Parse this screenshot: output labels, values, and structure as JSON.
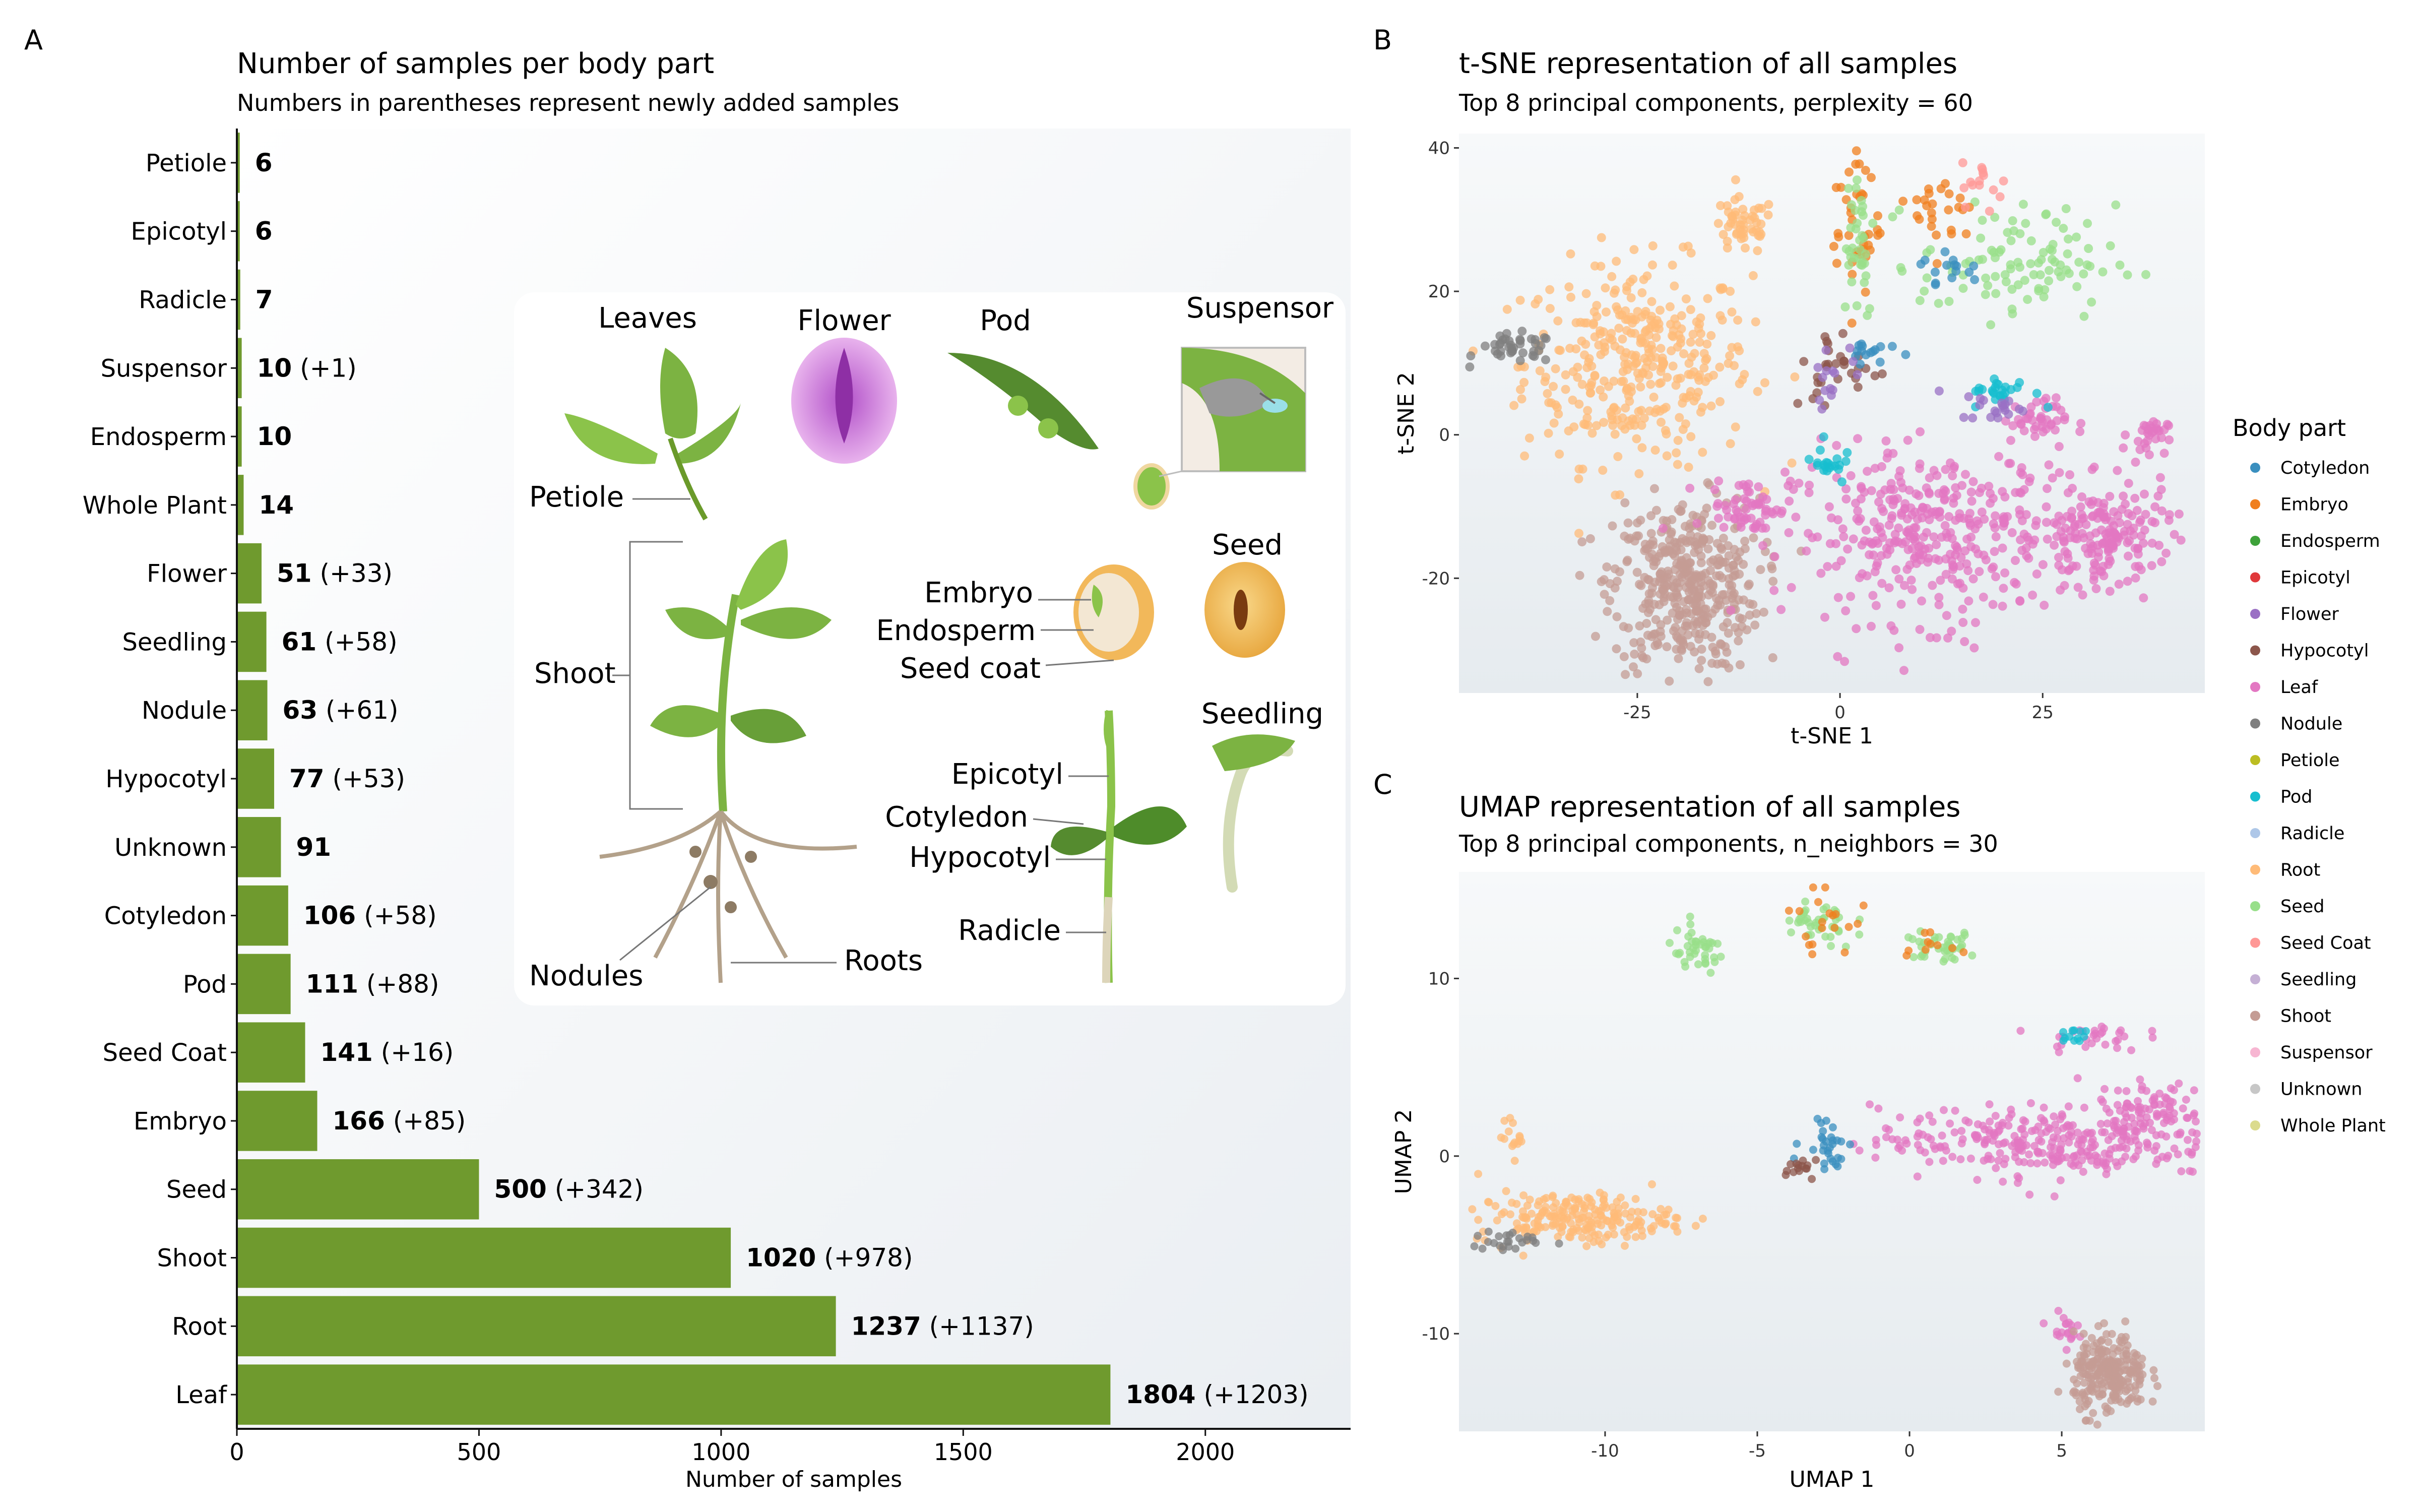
{
  "panels": {
    "a": "A",
    "b": "B",
    "c": "C"
  },
  "bar_panel": {
    "title": "Number of samples per body part",
    "subtitle": "Numbers in parentheses represent newly added samples",
    "xlabel": "Number of samples"
  },
  "illustration": {
    "labels": {
      "leaves": "Leaves",
      "flower": "Flower",
      "pod": "Pod",
      "suspensor": "Suspensor",
      "petiole": "Petiole",
      "shoot": "Shoot",
      "embryo": "Embryo",
      "endosperm": "Endosperm",
      "seed_coat": "Seed coat",
      "seed": "Seed",
      "seedling": "Seedling",
      "epicotyl": "Epicotyl",
      "cotyledon": "Cotyledon",
      "hypocotyl": "Hypocotyl",
      "radicle": "Radicle",
      "nodules": "Nodules",
      "roots": "Roots"
    }
  },
  "tsne_panel": {
    "title": "t-SNE representation of all samples",
    "subtitle": "Top 8 principal components, perplexity = 60",
    "xlabel": "t-SNE 1",
    "ylabel": "t-SNE 2"
  },
  "umap_panel": {
    "title": "UMAP representation of all samples",
    "subtitle": "Top 8 principal components, n_neighbors = 30",
    "xlabel": "UMAP 1",
    "ylabel": "UMAP 2"
  },
  "legend": {
    "title": "Body part",
    "items": [
      {
        "name": "Cotyledon",
        "color": "#3a8fbf"
      },
      {
        "name": "Embryo",
        "color": "#f07f1e"
      },
      {
        "name": "Endosperm",
        "color": "#3ea23a"
      },
      {
        "name": "Epicotyl",
        "color": "#e0393b"
      },
      {
        "name": "Flower",
        "color": "#9a70c4"
      },
      {
        "name": "Hypocotyl",
        "color": "#8c564b"
      },
      {
        "name": "Leaf",
        "color": "#e377c2"
      },
      {
        "name": "Nodule",
        "color": "#7f7f7f"
      },
      {
        "name": "Petiole",
        "color": "#bcbd22"
      },
      {
        "name": "Pod",
        "color": "#17becf"
      },
      {
        "name": "Radicle",
        "color": "#aec7e8"
      },
      {
        "name": "Root",
        "color": "#ffbb78"
      },
      {
        "name": "Seed",
        "color": "#98df8a"
      },
      {
        "name": "Seed Coat",
        "color": "#ff9896"
      },
      {
        "name": "Seedling",
        "color": "#c5b0d5"
      },
      {
        "name": "Shoot",
        "color": "#c49c94"
      },
      {
        "name": "Suspensor",
        "color": "#f7b6d2"
      },
      {
        "name": "Unknown",
        "color": "#c7c7c7"
      },
      {
        "name": "Whole Plant",
        "color": "#dbdb8d"
      }
    ]
  },
  "chart_data": [
    {
      "type": "bar",
      "orientation": "horizontal",
      "title": "Number of samples per body part",
      "subtitle": "Numbers in parentheses represent newly added samples",
      "xlabel": "Number of samples",
      "ylabel": "",
      "xlim": [
        0,
        2300
      ],
      "xticks": [
        0,
        500,
        1000,
        1500,
        2000
      ],
      "bar_color": "#6f9a2e",
      "categories": [
        "Petiole",
        "Epicotyl",
        "Radicle",
        "Suspensor",
        "Endosperm",
        "Whole Plant",
        "Flower",
        "Seedling",
        "Nodule",
        "Hypocotyl",
        "Unknown",
        "Cotyledon",
        "Pod",
        "Seed Coat",
        "Embryo",
        "Seed",
        "Shoot",
        "Root",
        "Leaf"
      ],
      "values": [
        6,
        6,
        7,
        10,
        10,
        14,
        51,
        61,
        63,
        77,
        91,
        106,
        111,
        141,
        166,
        500,
        1020,
        1237,
        1804
      ],
      "new_samples": [
        "",
        "",
        "",
        "(+1)",
        "",
        "",
        "(+33)",
        "(+58)",
        "(+61)",
        "(+53)",
        "",
        "(+58)",
        "(+88)",
        "(+16)",
        "(+85)",
        "(+342)",
        "(+978)",
        "(+1137)",
        "(+1203)"
      ]
    },
    {
      "type": "scatter",
      "title": "t-SNE representation of all samples",
      "subtitle": "Top 8 principal components, perplexity = 60",
      "xlabel": "t-SNE 1",
      "ylabel": "t-SNE 2",
      "xlim": [
        -47,
        45
      ],
      "ylim": [
        -36,
        42
      ],
      "xticks": [
        -25,
        0,
        25
      ],
      "yticks": [
        -20,
        0,
        20,
        40
      ],
      "clusters": [
        {
          "series": "Root",
          "x": -25,
          "y": 10,
          "sx": 7,
          "sy": 7,
          "n": 360
        },
        {
          "series": "Root",
          "x": -12,
          "y": 29,
          "sx": 2,
          "sy": 2,
          "n": 50
        },
        {
          "series": "Nodule",
          "x": -40,
          "y": 12,
          "sx": 2.5,
          "sy": 1,
          "n": 40
        },
        {
          "series": "Shoot",
          "x": -19,
          "y": -21,
          "sx": 4.5,
          "sy": 6,
          "n": 420
        },
        {
          "series": "Leaf",
          "x": 12,
          "y": -14,
          "sx": 9,
          "sy": 6,
          "n": 380
        },
        {
          "series": "Leaf",
          "x": 33,
          "y": -14,
          "sx": 4,
          "sy": 3.5,
          "n": 160
        },
        {
          "series": "Leaf",
          "x": -11,
          "y": -10,
          "sx": 2.5,
          "sy": 2,
          "n": 60
        },
        {
          "series": "Leaf",
          "x": 38,
          "y": 0,
          "sx": 1.2,
          "sy": 1.2,
          "n": 30
        },
        {
          "series": "Leaf",
          "x": 24,
          "y": 2,
          "sx": 2,
          "sy": 1.5,
          "n": 40
        },
        {
          "series": "Seed",
          "x": 22,
          "y": 24,
          "sx": 6,
          "sy": 4,
          "n": 100
        },
        {
          "series": "Embryo",
          "x": 2,
          "y": 30,
          "sx": 1.5,
          "sy": 6,
          "n": 40
        },
        {
          "series": "Embryo",
          "x": 13,
          "y": 31,
          "sx": 2,
          "sy": 3,
          "n": 25
        },
        {
          "series": "Seed",
          "x": 2,
          "y": 28,
          "sx": 1.2,
          "sy": 6,
          "n": 35
        },
        {
          "series": "Cotyledon",
          "x": 14,
          "y": 23,
          "sx": 2,
          "sy": 1.5,
          "n": 15
        },
        {
          "series": "Seed Coat",
          "x": 18,
          "y": 35,
          "sx": 1.5,
          "sy": 1.5,
          "n": 15
        },
        {
          "series": "Pod",
          "x": 20,
          "y": 6,
          "sx": 2,
          "sy": 1,
          "n": 25
        },
        {
          "series": "Flower",
          "x": 19,
          "y": 4,
          "sx": 2,
          "sy": 1,
          "n": 20
        },
        {
          "series": "Hypocotyl",
          "x": 0,
          "y": 9,
          "sx": 3,
          "sy": 3,
          "n": 30
        },
        {
          "series": "Cotyledon",
          "x": 4,
          "y": 12,
          "sx": 1.5,
          "sy": 1,
          "n": 15
        },
        {
          "series": "Pod",
          "x": -1.5,
          "y": -4,
          "sx": 1,
          "sy": 1.5,
          "n": 20
        },
        {
          "series": "Flower",
          "x": -1,
          "y": 9,
          "sx": 2,
          "sy": 2,
          "n": 15
        }
      ]
    },
    {
      "type": "scatter",
      "title": "UMAP representation of all samples",
      "subtitle": "Top 8 principal components, n_neighbors = 30",
      "xlabel": "UMAP 1",
      "ylabel": "UMAP 2",
      "xlim": [
        -14.8,
        9.7
      ],
      "ylim": [
        -15.5,
        16
      ],
      "xticks": [
        -10,
        -5,
        0,
        5
      ],
      "yticks": [
        -10,
        0,
        10
      ],
      "clusters": [
        {
          "series": "Root",
          "x": -11,
          "y": -3.5,
          "sx": 1.6,
          "sy": 0.7,
          "n": 220
        },
        {
          "series": "Root",
          "x": -13,
          "y": 1,
          "sx": 0.2,
          "sy": 0.5,
          "n": 15
        },
        {
          "series": "Nodule",
          "x": -13.2,
          "y": -4.8,
          "sx": 0.6,
          "sy": 0.3,
          "n": 25
        },
        {
          "series": "Leaf",
          "x": 4.5,
          "y": 0.8,
          "sx": 2.8,
          "sy": 1,
          "n": 320
        },
        {
          "series": "Leaf",
          "x": 8,
          "y": 2.8,
          "sx": 0.8,
          "sy": 0.7,
          "n": 70
        },
        {
          "series": "Leaf",
          "x": 5,
          "y": -9.7,
          "sx": 0.25,
          "sy": 0.4,
          "n": 20
        },
        {
          "series": "Leaf",
          "x": 6,
          "y": 6.7,
          "sx": 0.8,
          "sy": 0.4,
          "n": 30
        },
        {
          "series": "Shoot",
          "x": 6.6,
          "y": -12.3,
          "sx": 0.6,
          "sy": 1.1,
          "n": 260
        },
        {
          "series": "Seed",
          "x": -7,
          "y": 11.5,
          "sx": 0.5,
          "sy": 0.6,
          "n": 40
        },
        {
          "series": "Seed",
          "x": -3,
          "y": 13,
          "sx": 0.6,
          "sy": 0.8,
          "n": 40
        },
        {
          "series": "Seed",
          "x": 1,
          "y": 11.8,
          "sx": 0.6,
          "sy": 0.4,
          "n": 40
        },
        {
          "series": "Cotyledon",
          "x": -2.7,
          "y": 1,
          "sx": 0.4,
          "sy": 1,
          "n": 30
        },
        {
          "series": "Hypocotyl",
          "x": -3.5,
          "y": -0.6,
          "sx": 0.4,
          "sy": 0.3,
          "n": 15
        },
        {
          "series": "Embryo",
          "x": -3,
          "y": 13.5,
          "sx": 0.5,
          "sy": 1,
          "n": 20
        },
        {
          "series": "Embryo",
          "x": 0.5,
          "y": 12,
          "sx": 0.4,
          "sy": 0.3,
          "n": 10
        },
        {
          "series": "Pod",
          "x": 5.4,
          "y": 6.7,
          "sx": 0.3,
          "sy": 0.2,
          "n": 12
        }
      ]
    }
  ]
}
